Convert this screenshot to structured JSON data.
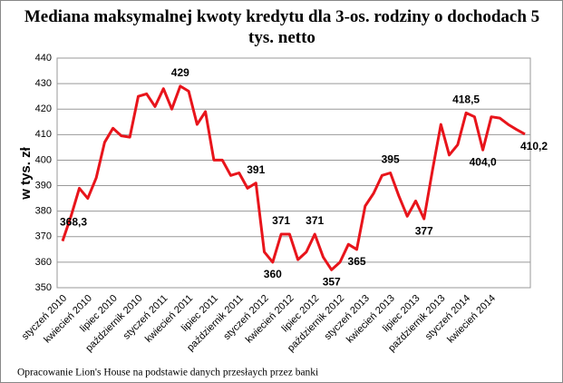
{
  "chart_data": {
    "type": "line",
    "title": "Mediana maksymalnej kwoty kredytu dla 3-os. rodziny o dochodach 5 tys. netto",
    "y_label": "w tys. zł",
    "source": "Opracowanie Lion's House na podstawie danych przesłaych przez banki",
    "categories": [
      "styczeń 2010",
      null,
      null,
      "kwiecień 2010",
      null,
      null,
      "lipiec 2010",
      null,
      null,
      "październik 2010",
      null,
      null,
      "styczeń 2011",
      null,
      null,
      "kwiecień 2011",
      null,
      null,
      "lipiec 2011",
      null,
      null,
      "październik 2011",
      null,
      null,
      "styczeń 2012",
      null,
      null,
      "kwiecień 2012",
      null,
      null,
      "lipiec 2012",
      null,
      null,
      "październik 2012",
      null,
      null,
      "styczeń 2013",
      null,
      null,
      "kwiecień 2013",
      null,
      null,
      "lipiec 2013",
      null,
      null,
      "październik 2013",
      null,
      null,
      "styczeń 2014",
      null,
      null,
      "kwiecień 2014",
      null,
      null,
      null,
      null
    ],
    "series": [
      {
        "name": "Mediana",
        "color": "#e8141b",
        "values": [
          368.3,
          378,
          389,
          385,
          393,
          407,
          412.5,
          409.5,
          409,
          425,
          426,
          421,
          428,
          420,
          429,
          427,
          414,
          419,
          400,
          400,
          394,
          395,
          389,
          391,
          364,
          360,
          371,
          371,
          361,
          364,
          371,
          362,
          357,
          360,
          367,
          365,
          382,
          387,
          394,
          395,
          386,
          378,
          384,
          377,
          396,
          414,
          402,
          406,
          418.5,
          417,
          404.0,
          417,
          416.5,
          414,
          412,
          410.2
        ],
        "value_labels": [
          "368,3",
          null,
          null,
          null,
          null,
          null,
          null,
          null,
          null,
          null,
          null,
          null,
          null,
          null,
          "429",
          null,
          null,
          null,
          null,
          null,
          null,
          null,
          null,
          "391",
          null,
          "360",
          "371",
          null,
          null,
          null,
          "371",
          null,
          "357",
          null,
          null,
          "365",
          null,
          null,
          null,
          "395",
          null,
          null,
          null,
          "377",
          null,
          null,
          null,
          null,
          "418,5",
          null,
          "404,0",
          null,
          null,
          null,
          null,
          "410,2"
        ]
      }
    ],
    "ylim": [
      350,
      440
    ],
    "yticks": [
      350,
      360,
      370,
      380,
      390,
      400,
      410,
      420,
      430,
      440
    ],
    "grid": true
  }
}
